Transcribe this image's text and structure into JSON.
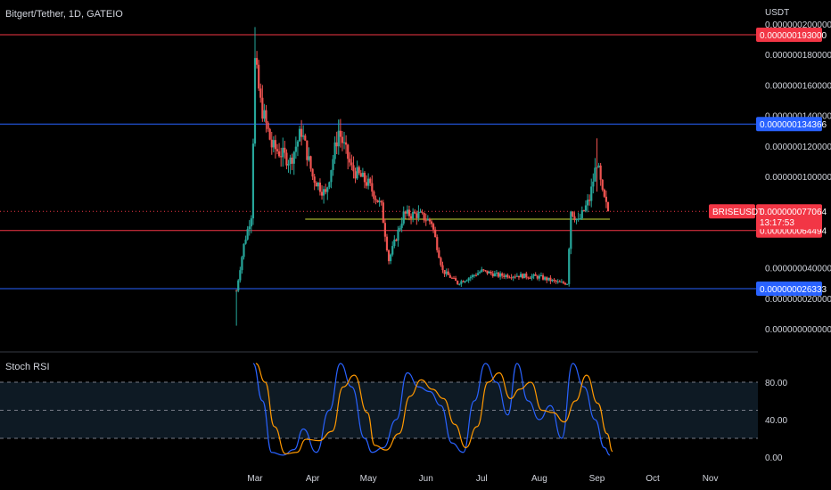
{
  "header": {
    "symbol_title": "Bitgert/Tether, 1D, GATEIO",
    "currency": "USDT"
  },
  "indicator": {
    "name": "Stoch RSI"
  },
  "colors": {
    "background": "#000000",
    "up": "#26a69a",
    "down": "#ef5350",
    "red_line": "#f23645",
    "blue_line": "#2962ff",
    "yellow_line": "#cddc39",
    "grid_text": "#d1d4dc",
    "stoch_k": "#2962ff",
    "stoch_d": "#ff9800",
    "stoch_band": "#0e1a24"
  },
  "chart_data": [
    {
      "type": "candlestick",
      "title": "Bitgert/Tether, 1D, GATEIO",
      "ylabel": "USDT",
      "ylim": [
        0,
        2e-07
      ],
      "y_tick_labels": [
        "0.000000200000",
        "0.000000180000",
        "0.000000160000",
        "0.000000140000",
        "0.000000120000",
        "0.000000100000",
        "0.000000040000",
        "0.000000020000",
        "0.000000000000"
      ],
      "x_tick_labels": [
        "Mar",
        "Apr",
        "May",
        "Jun",
        "Jul",
        "Aug",
        "Sep",
        "Oct",
        "Nov"
      ],
      "ohlc_close_path": [
        {
          "x": "Feb 19",
          "close": 2.5e-08
        },
        {
          "x": "Feb 23",
          "close": 5.5e-08
        },
        {
          "x": "Feb 27",
          "close": 7.5e-08
        },
        {
          "x": "Mar 1",
          "close": 1.75e-07
        },
        {
          "x": "Mar 4",
          "close": 1.48e-07
        },
        {
          "x": "Mar 10",
          "close": 1.2e-07
        },
        {
          "x": "Mar 20",
          "close": 1.1e-07
        },
        {
          "x": "Mar 26",
          "close": 1.3e-07
        },
        {
          "x": "Apr 1",
          "close": 1e-07
        },
        {
          "x": "Apr 8",
          "close": 8.8e-08
        },
        {
          "x": "Apr 15",
          "close": 1.3e-07
        },
        {
          "x": "Apr 22",
          "close": 1.05e-07
        },
        {
          "x": "May 1",
          "close": 9.5e-08
        },
        {
          "x": "May 8",
          "close": 8e-08
        },
        {
          "x": "May 12",
          "close": 4.5e-08
        },
        {
          "x": "May 20",
          "close": 7.5e-08
        },
        {
          "x": "May 28",
          "close": 7.5e-08
        },
        {
          "x": "Jun 4",
          "close": 7e-08
        },
        {
          "x": "Jun 10",
          "close": 3.8e-08
        },
        {
          "x": "Jun 18",
          "close": 3e-08
        },
        {
          "x": "Jun 25",
          "close": 3.4e-08
        },
        {
          "x": "Jul 1",
          "close": 3.8e-08
        },
        {
          "x": "Jul 10",
          "close": 3.5e-08
        },
        {
          "x": "Jul 20",
          "close": 3.5e-08
        },
        {
          "x": "Aug 1",
          "close": 3.4e-08
        },
        {
          "x": "Aug 12",
          "close": 3e-08
        },
        {
          "x": "Aug 16",
          "close": 3e-08
        },
        {
          "x": "Aug 18",
          "close": 7.8e-08
        },
        {
          "x": "Aug 22",
          "close": 7e-08
        },
        {
          "x": "Aug 28",
          "close": 8.5e-08
        },
        {
          "x": "Sep 1",
          "close": 1.1e-07
        },
        {
          "x": "Sep 4",
          "close": 8.8e-08
        },
        {
          "x": "Sep 7",
          "close": 7.7064e-08
        }
      ],
      "horizontal_lines": [
        {
          "value": 1.93e-07,
          "label": "0.000000193000",
          "color": "#f23645"
        },
        {
          "value": 1.34366e-07,
          "label": "0.000000134366",
          "color": "#2962ff"
        },
        {
          "value": 7.1898e-08,
          "label": "0.000000071898",
          "color": "#cddc39"
        },
        {
          "value": 6.4494e-08,
          "label": "0.000000064494",
          "color": "#f23645"
        },
        {
          "value": 2.6333e-08,
          "label": "0.000000026333",
          "color": "#2962ff"
        }
      ],
      "current_price": {
        "symbol": "BRISEUSDT",
        "value": 7.7064e-08,
        "label": "0.000000077064",
        "countdown": "13:17:53"
      }
    },
    {
      "type": "line",
      "title": "Stoch RSI",
      "ylim": [
        0,
        100
      ],
      "y_tick_labels": [
        "80.00",
        "40.00",
        "0.00"
      ],
      "bands": [
        20,
        50,
        80
      ],
      "series": [
        {
          "name": "",
          "x": [
            "Feb 28",
            "Mar 5",
            "Mar 10",
            "Mar 16",
            "Mar 22",
            "Mar 27",
            "Apr 3",
            "Apr 10",
            "Apr 16",
            "Apr 22",
            "Apr 29",
            "May 3",
            "May 9",
            "May 16",
            "May 22",
            "May 28",
            "Jun 3",
            "Jun 9",
            "Jun 15",
            "Jun 21",
            "Jun 27",
            "Jul 3",
            "Jul 9",
            "Jul 15",
            "Jul 20",
            "Jul 26",
            "Aug 1",
            "Aug 7",
            "Aug 13",
            "Aug 19",
            "Aug 25",
            "Aug 31",
            "Sep 5",
            "Sep 8"
          ],
          "values": [
            100,
            60,
            5,
            2,
            8,
            30,
            5,
            50,
            100,
            75,
            20,
            5,
            10,
            40,
            90,
            75,
            70,
            55,
            15,
            5,
            60,
            100,
            80,
            45,
            100,
            60,
            40,
            55,
            20,
            100,
            75,
            40,
            10,
            2
          ]
        }
      ]
    }
  ]
}
